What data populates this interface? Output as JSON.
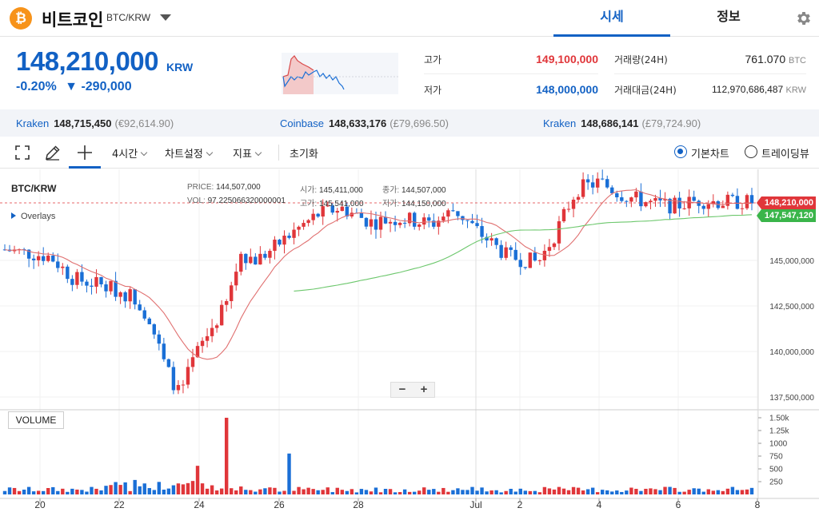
{
  "header": {
    "coin_symbol": "₿",
    "coin_name": "비트코인",
    "pair": "BTC/KRW",
    "tabs": [
      {
        "label": "시세",
        "active": true
      },
      {
        "label": "정보",
        "active": false
      }
    ]
  },
  "price": {
    "current": "148,210,000",
    "unit": "KRW",
    "change_pct": "-0.20%",
    "change_abs": "▼ -290,000"
  },
  "stats": {
    "high_label": "고가",
    "high": "149,100,000",
    "low_label": "저가",
    "low": "148,000,000",
    "volume_label": "거래량(24H)",
    "volume": "761.070",
    "volume_unit": "BTC",
    "amount_label": "거래대금(24H)",
    "amount": "112,970,686,487",
    "amount_unit": "KRW"
  },
  "exchanges": [
    {
      "name": "Kraken",
      "price": "148,715,450",
      "sub": "(€92,614.90)"
    },
    {
      "name": "Coinbase",
      "price": "148,633,176",
      "sub": "(£79,696.50)"
    },
    {
      "name": "Kraken",
      "price": "148,686,141",
      "sub": "(£79,724.90)"
    }
  ],
  "toolbar": {
    "interval": "4시간",
    "chart_settings": "차트설정",
    "indicators": "지표",
    "reset": "초기화",
    "view_basic": "기본차트",
    "view_trading": "트레이딩뷰"
  },
  "chart": {
    "title": "BTC/KRW",
    "overlays": "Overlays",
    "info": {
      "price_k": "PRICE:",
      "price_v": "144,507,000",
      "vol_k": "VOL:",
      "vol_v": "97.225066320000001",
      "open_k": "시가:",
      "open_v": "145,411,000",
      "high_k": "고가:",
      "high_v": "145,541,000",
      "close_k": "종가:",
      "close_v": "144,507,000",
      "low_k": "저가:",
      "low_v": "144,150,000"
    },
    "volume_label": "VOLUME",
    "zoom_out": "−",
    "zoom_in": "+",
    "last_price_tag": "148,210,000",
    "ma_tag": "147,547,120",
    "y_ticks": [
      "145,000,000",
      "142,500,000",
      "140,000,000",
      "137,500,000"
    ],
    "vol_ticks": [
      "1.50k",
      "1.25k",
      "1000",
      "750",
      "500",
      "250"
    ],
    "x_ticks": [
      "20",
      "22",
      "24",
      "26",
      "28",
      "Jul",
      "2",
      "4",
      "6",
      "8"
    ],
    "colors": {
      "up": "#e0363a",
      "down": "#1a6fd6",
      "ma_short": "#e07070",
      "ma_long": "#6cc76c"
    }
  }
}
